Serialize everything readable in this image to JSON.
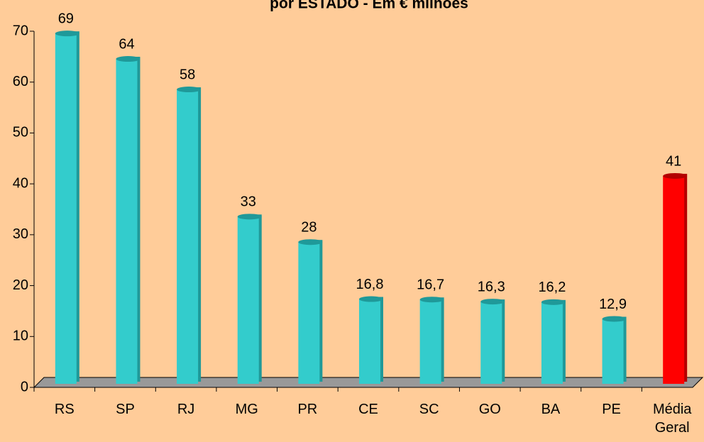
{
  "chart_data": {
    "type": "bar",
    "title": "por ESTADO - Em € milhões",
    "categories": [
      "RS",
      "SP",
      "RJ",
      "MG",
      "PR",
      "CE",
      "SC",
      "GO",
      "BA",
      "PE",
      "Média Geral"
    ],
    "values": [
      69,
      64,
      58,
      33,
      28,
      16.8,
      16.7,
      16.3,
      16.2,
      12.9,
      41
    ],
    "value_labels": [
      "69",
      "64",
      "58",
      "33",
      "28",
      "16,8",
      "16,7",
      "16,3",
      "16,2",
      "12,9",
      "41"
    ],
    "colors": [
      "#33CCCC",
      "#33CCCC",
      "#33CCCC",
      "#33CCCC",
      "#33CCCC",
      "#33CCCC",
      "#33CCCC",
      "#33CCCC",
      "#33CCCC",
      "#33CCCC",
      "#FF0000"
    ],
    "ylim": [
      0,
      70
    ],
    "yticks": [
      0,
      10,
      20,
      30,
      40,
      50,
      60,
      70
    ],
    "grid": false
  }
}
